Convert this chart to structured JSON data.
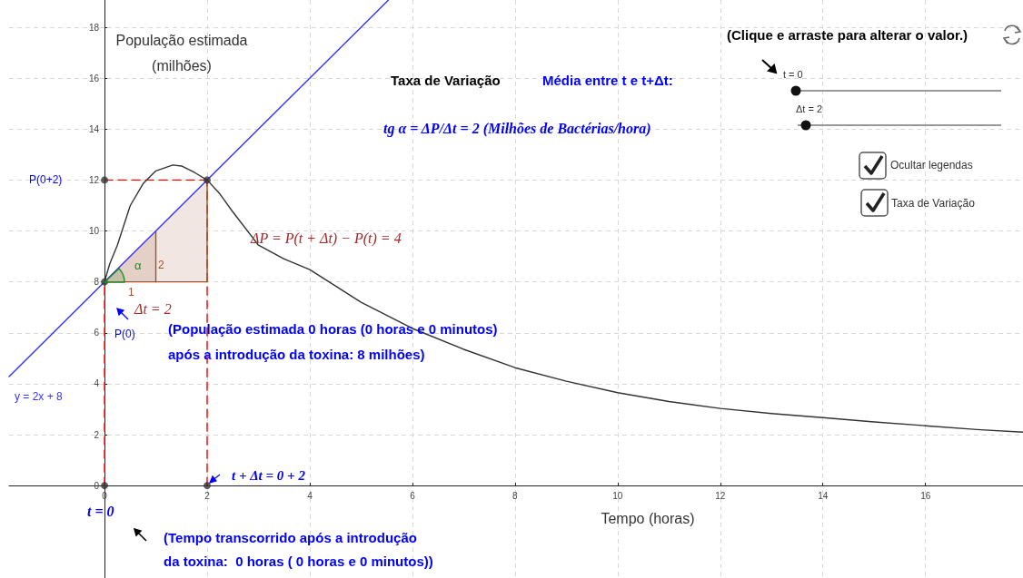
{
  "chart_data": {
    "type": "line",
    "xlabel": "Tempo (horas)",
    "ylabel": "População estimada\n(milhões)",
    "xlim": [
      -1.86,
      17.9
    ],
    "ylim": [
      -3.63,
      19.07
    ],
    "xticks": [
      0,
      2,
      4,
      6,
      8,
      10,
      12,
      14,
      16
    ],
    "yticks": [
      0,
      2,
      4,
      6,
      8,
      10,
      12,
      14,
      16,
      18
    ],
    "grid": true,
    "series": [
      {
        "type": "area",
        "color": "#f1e6e1",
        "x": [
          0,
          2
        ],
        "values": [
          8,
          12
        ]
      },
      {
        "type": "area",
        "color": "#e4d0c6",
        "x": [
          0,
          1
        ],
        "values": [
          8,
          10
        ]
      },
      {
        "color": "#ff0000",
        "x": [
          0,
          0
        ],
        "values": [
          0,
          8
        ],
        "marker": "none",
        "line_style": "dashed"
      },
      {
        "color": "#ff0000",
        "x": [
          2,
          2
        ],
        "values": [
          0,
          12
        ],
        "marker": "none",
        "line_style": "dashed"
      },
      {
        "color": "#ff0000",
        "x": [
          0,
          2
        ],
        "values": [
          12,
          12
        ],
        "marker": "none",
        "line_style": "dashed"
      },
      {
        "color": "#a0522d",
        "x": [
          0,
          2
        ],
        "values": [
          8,
          8
        ],
        "marker": "none",
        "line_style": "solid"
      },
      {
        "color": "#a0522d",
        "x": [
          2,
          2
        ],
        "values": [
          8,
          12
        ],
        "marker": "none",
        "line_style": "solid"
      },
      {
        "color": "#a0522d",
        "x": [
          1,
          1
        ],
        "values": [
          8,
          10
        ],
        "marker": "none",
        "line_style": "solid"
      },
      {
        "name": "y = 2x + 8",
        "color": "#3333ff",
        "x": [
          -1.86,
          5.53
        ],
        "values": [
          4.28,
          19.06
        ],
        "marker": "none",
        "line_style": "solid"
      },
      {
        "color": "#333333",
        "x": [
          0,
          0.1,
          0.25,
          0.5,
          0.75,
          1,
          1.33,
          1.5,
          1.75,
          2,
          2.25,
          2.5,
          3,
          3.5,
          4,
          5,
          6,
          7,
          8,
          9,
          10,
          11,
          12,
          13,
          14,
          15,
          16,
          17,
          17.9
        ],
        "values": [
          8,
          8.7,
          9.44,
          10.99,
          11.85,
          12.36,
          12.59,
          12.55,
          12.3,
          12,
          11.45,
          10.75,
          9.44,
          8.9,
          8.48,
          7.2,
          6.17,
          5.35,
          4.63,
          4.1,
          3.65,
          3.3,
          3.03,
          2.83,
          2.67,
          2.5,
          2.35,
          2.2,
          2.1
        ],
        "marker": "none",
        "line_style": "solid"
      },
      {
        "type": "scatter",
        "color": "#333333",
        "x": [
          0,
          2,
          0,
          2,
          0
        ],
        "values": [
          8,
          12,
          0,
          0,
          12
        ],
        "marker": "circle"
      }
    ],
    "annotations": [
      "P(0+2)",
      "P(0)",
      "ΔP = P(t + Δt) − P(t) = 4",
      "Δt = 2",
      "1",
      "2",
      "α",
      "t = 0",
      "t + Δt = 0 + 2",
      "(População estimada 0 horas (0 horas e 0 minutos)\napós a introdução da toxina: 8 milhões)",
      "(Tempo transcorrido após a introdução\nda toxina:  0 horas ( 0 horas e 0 minutos))",
      "Taxa de Variação",
      "Média entre t e t+Δt:",
      "tg α = ΔP/Δt = 2 (Milhões de Bactérias/hora)",
      "(Clique e arraste para alterar o valor.)",
      "t = 0",
      "Δt = 2",
      "Ocultar legendas",
      "Taxa de Variação"
    ]
  }
}
